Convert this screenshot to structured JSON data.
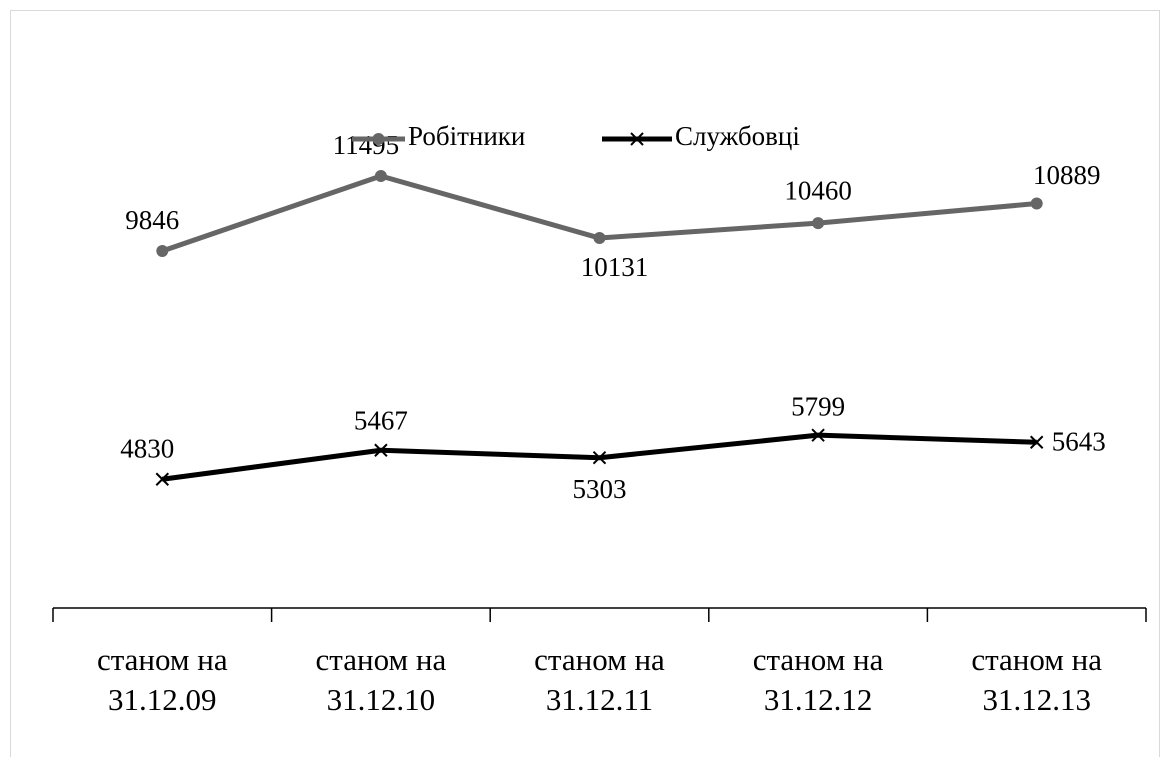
{
  "chart_data": {
    "type": "line",
    "categories": [
      "станом на 31.12.09",
      "станом на 31.12.10",
      "станом на 31.12.11",
      "станом на 31.12.12",
      "станом на 31.12.13"
    ],
    "series": [
      {
        "name": "Робітники",
        "color": "#666666",
        "marker": "circle",
        "values": [
          9846,
          11495,
          10131,
          10460,
          10889
        ]
      },
      {
        "name": "Службовці",
        "color": "#000000",
        "marker": "x",
        "values": [
          4830,
          5467,
          5303,
          5799,
          5643
        ]
      }
    ],
    "ylim": [
      2000,
      14000
    ],
    "legend": "top"
  }
}
